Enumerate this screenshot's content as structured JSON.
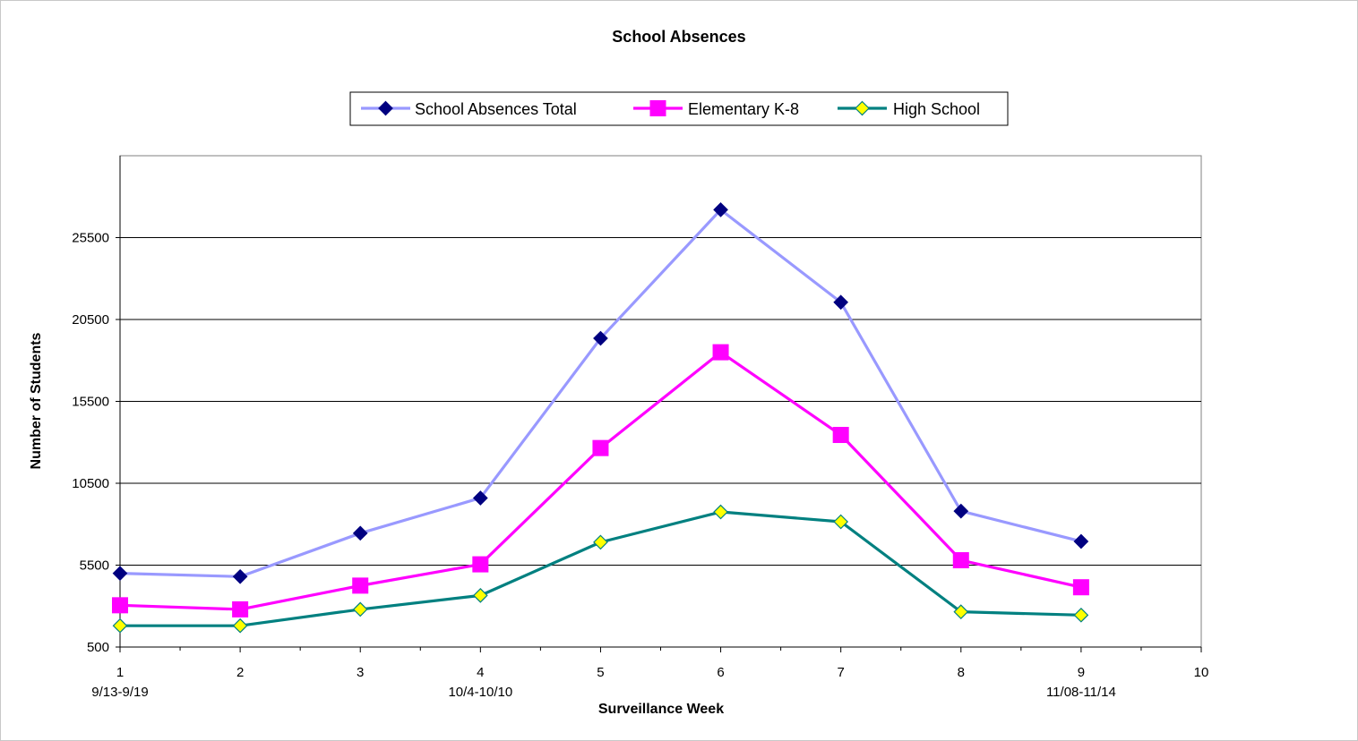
{
  "chart_data": {
    "type": "line",
    "title": "School Absences",
    "xlabel": "Surveillance Week",
    "ylabel": "Number of Students",
    "x_ticks": [
      "1",
      "2",
      "3",
      "4",
      "5",
      "6",
      "7",
      "8",
      "9",
      "10"
    ],
    "x_date_labels": [
      {
        "x": 1,
        "label": "9/13-9/19"
      },
      {
        "x": 4,
        "label": "10/4-10/10"
      },
      {
        "x": 9,
        "label": "11/08-11/14"
      }
    ],
    "y_ticks": [
      500,
      5500,
      10500,
      15500,
      20500,
      25500
    ],
    "xlim": [
      1,
      10
    ],
    "ylim": [
      500,
      30500
    ],
    "grid": "horizontal",
    "legend_position": "top",
    "x": [
      1,
      2,
      3,
      4,
      5,
      6,
      7,
      8,
      9
    ],
    "series": [
      {
        "name": "School Absences Total",
        "line_color": "#9999ff",
        "marker": "diamond",
        "marker_color": "#000080",
        "values": [
          5000,
          4800,
          7450,
          9600,
          19350,
          27200,
          21550,
          8800,
          6950
        ]
      },
      {
        "name": "Elementary K-8",
        "line_color": "#ff00ff",
        "marker": "square",
        "marker_color": "#ff00ff",
        "values": [
          3050,
          2800,
          4250,
          5550,
          12650,
          18500,
          13450,
          5800,
          4150
        ]
      },
      {
        "name": "High School",
        "line_color": "#008080",
        "marker": "diamond",
        "marker_color": "#ffff00",
        "values": [
          1800,
          1800,
          2800,
          3650,
          6900,
          8750,
          8150,
          2650,
          2450
        ]
      }
    ]
  }
}
